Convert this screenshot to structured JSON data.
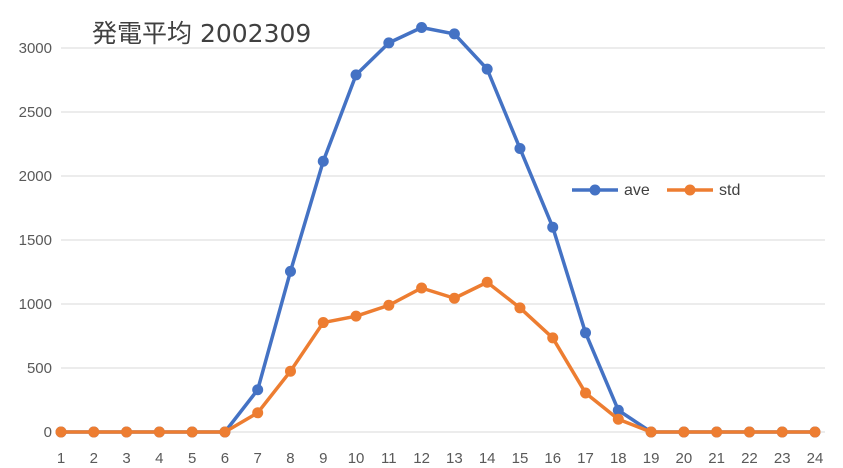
{
  "chart_data": {
    "type": "line",
    "title": "発電平均 2002309",
    "xlabel": "",
    "ylabel": "",
    "categories": [
      "1",
      "2",
      "3",
      "4",
      "5",
      "6",
      "7",
      "8",
      "9",
      "10",
      "11",
      "12",
      "13",
      "14",
      "15",
      "16",
      "17",
      "18",
      "19",
      "20",
      "21",
      "22",
      "23",
      "24"
    ],
    "ylim": [
      0,
      3000
    ],
    "yticks": [
      0,
      500,
      1000,
      1500,
      2000,
      2500,
      3000
    ],
    "grid": true,
    "legend": "right",
    "series": [
      {
        "name": "ave",
        "color": "#4472c4",
        "values": [
          0,
          0,
          0,
          0,
          0,
          0,
          330,
          1255,
          2115,
          2790,
          3040,
          3160,
          3110,
          2835,
          2215,
          1600,
          775,
          170,
          0,
          0,
          0,
          0,
          0,
          0
        ]
      },
      {
        "name": "std",
        "color": "#ed7d31",
        "values": [
          0,
          0,
          0,
          0,
          0,
          0,
          150,
          475,
          855,
          905,
          990,
          1125,
          1045,
          1170,
          970,
          735,
          305,
          100,
          0,
          0,
          0,
          0,
          0,
          0
        ]
      }
    ]
  }
}
